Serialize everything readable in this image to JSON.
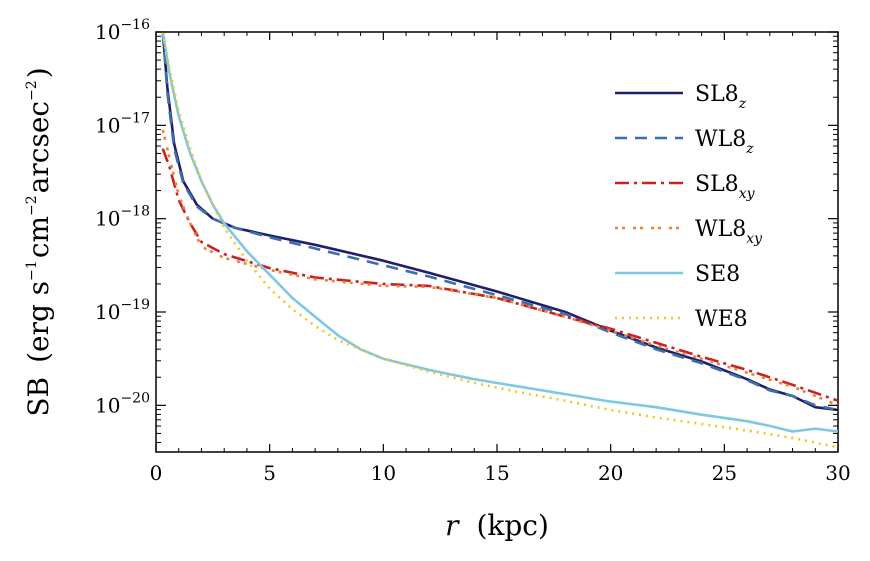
{
  "chart_data": {
    "type": "line",
    "title": "",
    "xlabel_var": "r",
    "xlabel_unit": "(kpc)",
    "ylabel": "SB (erg s⁻¹ cm⁻² arcsec⁻²)",
    "ylabel_parts": {
      "main": "SB",
      "open": "(erg s",
      "e1": "−1",
      "cm": "cm",
      "e2": "−2",
      "arcsec": "arcsec",
      "e3": "−2",
      "close": ")"
    },
    "xlim": [
      0,
      30
    ],
    "ylim_log10": [
      -20.5,
      -16
    ],
    "xticks": [
      0,
      5,
      10,
      15,
      20,
      25,
      30
    ],
    "yticks": [
      {
        "base": "10",
        "exp": "−16",
        "log": -16
      },
      {
        "base": "10",
        "exp": "−17",
        "log": -17
      },
      {
        "base": "10",
        "exp": "−18",
        "log": -18
      },
      {
        "base": "10",
        "exp": "−19",
        "log": -19
      },
      {
        "base": "10",
        "exp": "−20",
        "log": -20
      }
    ],
    "legend_position": "upper-right",
    "series": [
      {
        "name": "SL8",
        "sub": "z",
        "color": "#1f1f6e",
        "dash": "",
        "x": [
          0.3,
          0.5,
          0.8,
          1.2,
          1.8,
          2.5,
          3.5,
          5,
          7,
          10,
          12,
          15,
          18,
          20,
          22,
          24,
          26,
          27,
          28,
          29,
          30
        ],
        "log_y": [
          -16.0,
          -16.6,
          -17.2,
          -17.6,
          -17.85,
          -18.0,
          -18.1,
          -18.18,
          -18.28,
          -18.45,
          -18.58,
          -18.78,
          -19.0,
          -19.2,
          -19.38,
          -19.53,
          -19.72,
          -19.83,
          -19.9,
          -20.02,
          -20.05
        ]
      },
      {
        "name": "WL8",
        "sub": "z",
        "color": "#3f6fa8",
        "dash": "12,8",
        "x": [
          0.3,
          0.5,
          0.8,
          1.2,
          1.8,
          2.5,
          3.5,
          5,
          7,
          10,
          12,
          15,
          18,
          20,
          22,
          24,
          26,
          27,
          28,
          29,
          30
        ],
        "log_y": [
          -16.0,
          -16.65,
          -17.25,
          -17.62,
          -17.87,
          -18.0,
          -18.1,
          -18.2,
          -18.32,
          -18.5,
          -18.62,
          -18.82,
          -19.02,
          -19.22,
          -19.4,
          -19.55,
          -19.73,
          -19.84,
          -19.9,
          -20.0,
          -20.05
        ]
      },
      {
        "name": "SL8",
        "sub": "xy",
        "color": "#cc1f1f",
        "dash": "14,5,3,5",
        "x": [
          0.3,
          0.6,
          1.0,
          1.5,
          2,
          3,
          5,
          7,
          10,
          12,
          15,
          18,
          20,
          22,
          24,
          26,
          28,
          30
        ],
        "log_y": [
          -17.25,
          -17.45,
          -17.8,
          -18.05,
          -18.25,
          -18.38,
          -18.53,
          -18.63,
          -18.7,
          -18.72,
          -18.85,
          -19.05,
          -19.18,
          -19.33,
          -19.48,
          -19.62,
          -19.78,
          -19.95
        ]
      },
      {
        "name": "WL8",
        "sub": "xy",
        "color": "#f07f3a",
        "dash": "3,4,3,8",
        "x": [
          0.3,
          0.6,
          1.0,
          1.5,
          2,
          3,
          5,
          7,
          10,
          12,
          15,
          18,
          20,
          22,
          24,
          26,
          28,
          30
        ],
        "log_y": [
          -17.05,
          -17.35,
          -17.75,
          -18.05,
          -18.3,
          -18.42,
          -18.55,
          -18.65,
          -18.72,
          -18.73,
          -18.85,
          -19.05,
          -19.2,
          -19.36,
          -19.5,
          -19.65,
          -19.8,
          -20.0
        ]
      },
      {
        "name": "SE8",
        "sub": "",
        "color": "#7ec8e3",
        "dash": "",
        "x": [
          0.3,
          0.6,
          1.0,
          1.5,
          2,
          2.5,
          3,
          4,
          5,
          6,
          7,
          8,
          9,
          10,
          12,
          14,
          16,
          18,
          20,
          22,
          24,
          26,
          27,
          28,
          29,
          30
        ],
        "log_y": [
          -16.0,
          -16.45,
          -16.9,
          -17.3,
          -17.6,
          -17.85,
          -18.05,
          -18.35,
          -18.6,
          -18.85,
          -19.05,
          -19.25,
          -19.4,
          -19.5,
          -19.62,
          -19.72,
          -19.8,
          -19.88,
          -19.96,
          -20.02,
          -20.1,
          -20.17,
          -20.22,
          -20.28,
          -20.25,
          -20.28
        ]
      },
      {
        "name": "WE8",
        "sub": "",
        "color": "#f5c518",
        "dash": "2,5",
        "x": [
          0.3,
          0.6,
          1.0,
          1.5,
          2,
          2.5,
          3,
          4,
          5,
          6,
          7,
          8,
          9,
          10,
          12,
          14,
          16,
          18,
          20,
          22,
          24,
          26,
          28,
          30
        ],
        "log_y": [
          -16.0,
          -16.4,
          -16.85,
          -17.25,
          -17.6,
          -17.85,
          -18.1,
          -18.45,
          -18.75,
          -18.97,
          -19.15,
          -19.3,
          -19.4,
          -19.5,
          -19.64,
          -19.76,
          -19.86,
          -19.95,
          -20.05,
          -20.13,
          -20.2,
          -20.27,
          -20.35,
          -20.45
        ]
      }
    ]
  }
}
